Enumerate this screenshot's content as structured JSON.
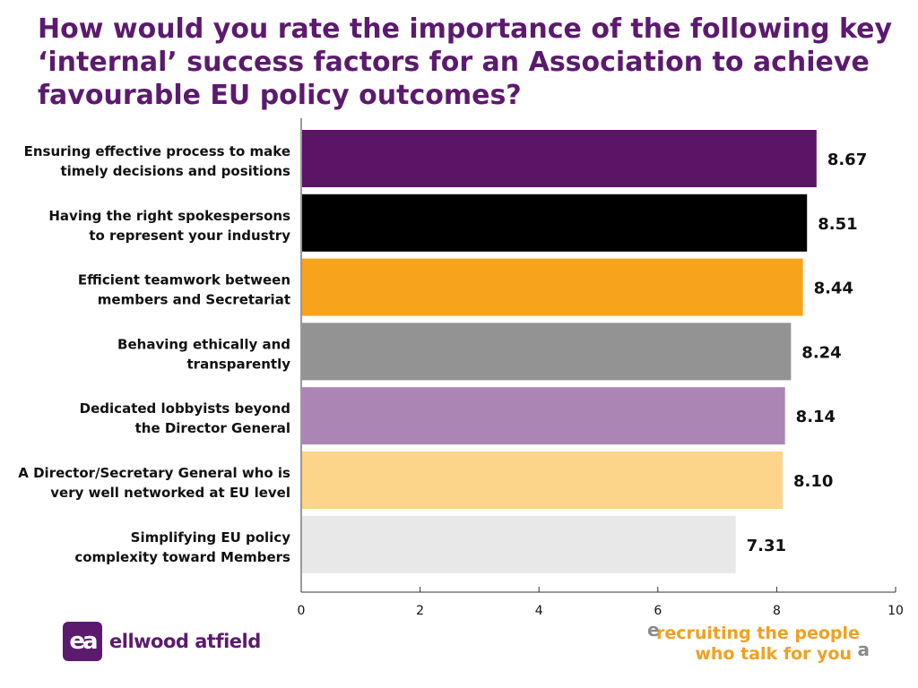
{
  "chart_data": {
    "type": "bar",
    "orientation": "horizontal",
    "title": "How would you rate the importance of the following key ‘internal’ success factors for an Association to achieve favourable EU policy outcomes?",
    "categories": [
      [
        "Ensuring effective process to make",
        "timely decisions and positions"
      ],
      [
        "Having the right spokespersons",
        "to represent your industry"
      ],
      [
        "Efficient teamwork between",
        "members and Secretariat"
      ],
      [
        "Behaving ethically and",
        "transparently"
      ],
      [
        "Dedicated lobbyists beyond",
        "the Director General"
      ],
      [
        "A Director/Secretary General who is",
        "very well networked at EU level"
      ],
      [
        "Simplifying EU policy",
        "complexity toward Members"
      ]
    ],
    "values": [
      8.67,
      8.51,
      8.44,
      8.24,
      8.14,
      8.1,
      7.31
    ],
    "value_labels": [
      "8.67",
      "8.51",
      "8.44",
      "8.24",
      "8.14",
      "8.10",
      "7.31"
    ],
    "colors": [
      "#5c1467",
      "#000000",
      "#f7a31c",
      "#939393",
      "#ab86b4",
      "#fcd48a",
      "#e8e8e8"
    ],
    "xlim": [
      0,
      10
    ],
    "xticks": [
      0,
      2,
      4,
      6,
      8,
      10
    ],
    "xtick_labels": [
      "0",
      "2",
      "4",
      "6",
      "8",
      "10"
    ],
    "xlabel": "",
    "ylabel": "",
    "grid": false,
    "legend": "none"
  },
  "branding": {
    "logo_mark": "ea",
    "logo_text": "ellwood atfield",
    "tagline_line1": "recruiting the people",
    "tagline_line2": "who talk for you",
    "brand_color": "#5c1a6e",
    "tagline_color": "#f0a020"
  }
}
